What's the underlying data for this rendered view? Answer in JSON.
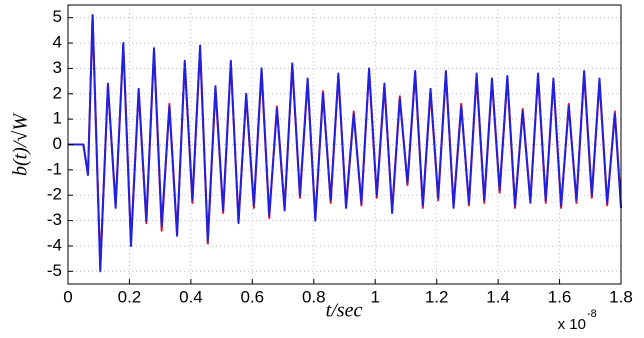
{
  "chart_data": {
    "type": "line",
    "xlabel": "t/sec",
    "ylabel": "b(t)/√W",
    "x_multiplier": {
      "base": "x 10",
      "exponent": "-8"
    },
    "x": [
      0,
      0.05,
      0.065,
      0.08,
      0.105,
      0.13,
      0.155,
      0.18,
      0.205,
      0.23,
      0.255,
      0.28,
      0.305,
      0.33,
      0.355,
      0.38,
      0.405,
      0.43,
      0.455,
      0.48,
      0.505,
      0.53,
      0.555,
      0.58,
      0.605,
      0.63,
      0.655,
      0.68,
      0.705,
      0.73,
      0.755,
      0.78,
      0.805,
      0.83,
      0.855,
      0.88,
      0.905,
      0.93,
      0.955,
      0.98,
      1.005,
      1.03,
      1.055,
      1.08,
      1.105,
      1.13,
      1.155,
      1.18,
      1.205,
      1.23,
      1.255,
      1.28,
      1.305,
      1.33,
      1.355,
      1.38,
      1.405,
      1.43,
      1.455,
      1.48,
      1.505,
      1.53,
      1.555,
      1.58,
      1.605,
      1.63,
      1.655,
      1.68,
      1.705,
      1.73,
      1.755,
      1.78,
      1.8
    ],
    "series": [
      {
        "color": "#e0102a",
        "values": [
          0,
          0,
          -1.2,
          5.1,
          -4.8,
          2.3,
          -2.4,
          3.9,
          -3.8,
          2.1,
          -3.1,
          3.7,
          -3.4,
          1.6,
          -3.5,
          3.2,
          -2.3,
          3.8,
          -3.9,
          2.2,
          -2.7,
          3.2,
          -3.0,
          1.9,
          -2.5,
          2.9,
          -2.9,
          1.5,
          -2.5,
          3.1,
          -2.1,
          2.5,
          -2.9,
          2.1,
          -2.3,
          2.7,
          -2.4,
          1.3,
          -2.4,
          2.9,
          -2.1,
          2.3,
          -2.6,
          1.9,
          -1.6,
          2.8,
          -2.5,
          2.1,
          -2.2,
          2.8,
          -2.4,
          1.6,
          -2.4,
          2.7,
          -2.3,
          2.5,
          -1.9,
          2.6,
          -2.5,
          1.4,
          -2.2,
          2.7,
          -2.3,
          2.5,
          -2.5,
          1.6,
          -2.3,
          2.8,
          -2.1,
          2.5,
          -2.4,
          1.3,
          -2.4
        ]
      },
      {
        "color": "#2020e0",
        "values": [
          0,
          0,
          -1.2,
          5.1,
          -5.0,
          2.4,
          -2.5,
          4.0,
          -4.0,
          2.2,
          -3.0,
          3.8,
          -3.2,
          1.5,
          -3.6,
          3.3,
          -2.2,
          3.9,
          -3.8,
          2.3,
          -2.6,
          3.3,
          -3.1,
          2.0,
          -2.4,
          3.0,
          -2.8,
          1.4,
          -2.6,
          3.2,
          -2.0,
          2.6,
          -3.0,
          2.0,
          -2.2,
          2.8,
          -2.5,
          1.2,
          -2.3,
          3.0,
          -2.0,
          2.4,
          -2.7,
          1.8,
          -1.5,
          2.9,
          -2.4,
          2.2,
          -2.1,
          2.9,
          -2.5,
          1.5,
          -2.3,
          2.8,
          -2.2,
          2.6,
          -1.8,
          2.7,
          -2.4,
          1.3,
          -2.3,
          2.8,
          -2.2,
          2.6,
          -2.4,
          1.5,
          -2.2,
          2.9,
          -2.0,
          2.6,
          -2.3,
          1.2,
          -2.5
        ]
      }
    ],
    "xlim": [
      0,
      1.8
    ],
    "xticks": [
      0,
      0.2,
      0.4,
      0.6,
      0.8,
      1,
      1.2,
      1.4,
      1.6,
      1.8
    ],
    "ylim": [
      -5.5,
      5.5
    ],
    "yticks": [
      -5,
      -4,
      -3,
      -2,
      -1,
      0,
      1,
      2,
      3,
      4,
      5
    ],
    "grid": true
  }
}
